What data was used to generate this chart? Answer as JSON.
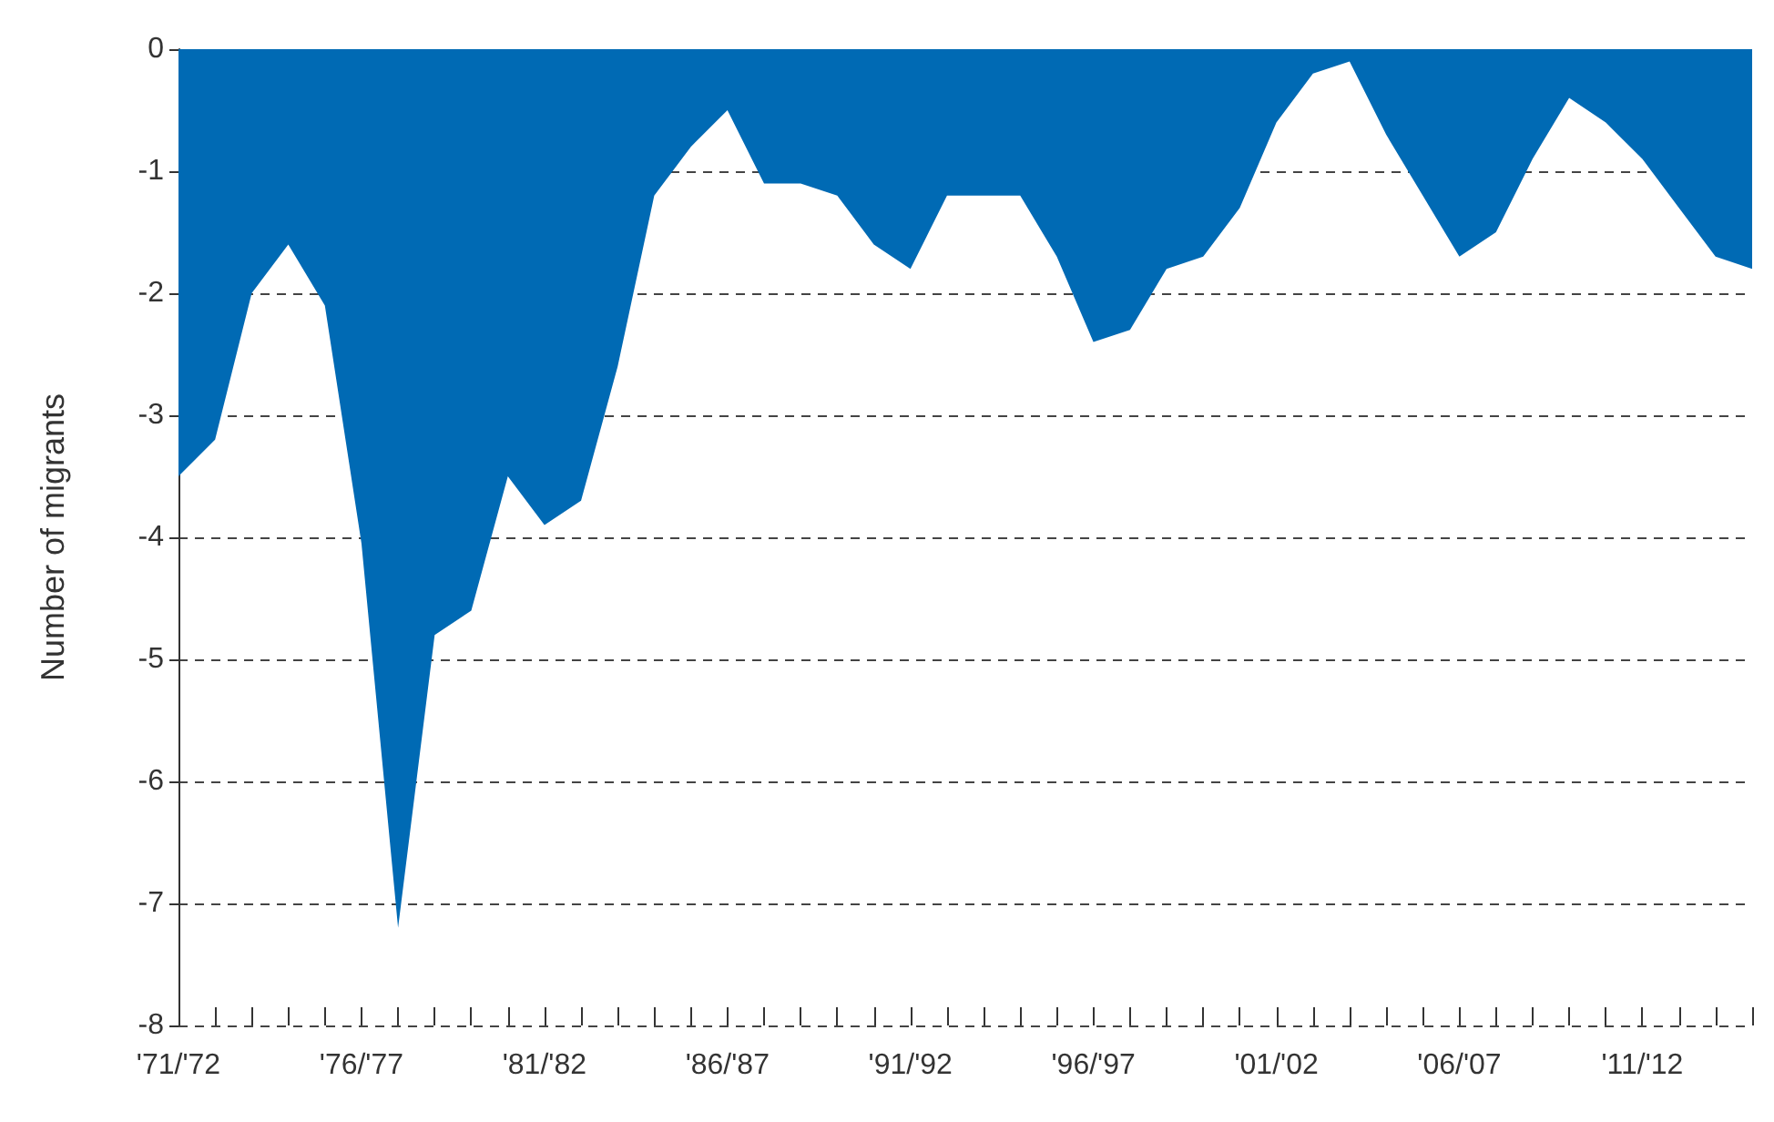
{
  "chart_data": {
    "type": "area",
    "ylabel": "Number of migrants",
    "categories": [
      "'71/'72",
      null,
      null,
      null,
      null,
      "'76/'77",
      null,
      null,
      null,
      null,
      "'81/'82",
      null,
      null,
      null,
      null,
      "'86/'87",
      null,
      null,
      null,
      null,
      "'91/'92",
      null,
      null,
      null,
      null,
      "'96/'97",
      null,
      null,
      null,
      null,
      "'01/'02",
      null,
      null,
      null,
      null,
      "'06/'07",
      null,
      null,
      null,
      null,
      "'11/'12",
      null,
      null,
      null
    ],
    "series": [
      {
        "color": "#006ab4",
        "values": [
          -3.5,
          -3.2,
          -2.0,
          -1.6,
          -2.1,
          -4.05,
          -7.2,
          -4.8,
          -4.6,
          -3.5,
          -3.9,
          -3.7,
          -2.6,
          -1.2,
          -0.8,
          -0.5,
          -1.1,
          -1.1,
          -1.2,
          -1.6,
          -1.8,
          -1.2,
          -1.2,
          -1.2,
          -1.7,
          -2.4,
          -2.3,
          -1.8,
          -1.7,
          -1.3,
          -0.6,
          -0.2,
          -0.1,
          -0.7,
          -1.2,
          -1.7,
          -1.5,
          -0.9,
          -0.4,
          -0.6,
          -0.9,
          -1.3,
          -1.7,
          -1.8
        ]
      }
    ],
    "ylim": [
      -8,
      0
    ],
    "yticks": [
      -8,
      -7,
      -6,
      -5,
      -4,
      -3,
      -2,
      -1,
      0
    ],
    "grid": "y"
  }
}
